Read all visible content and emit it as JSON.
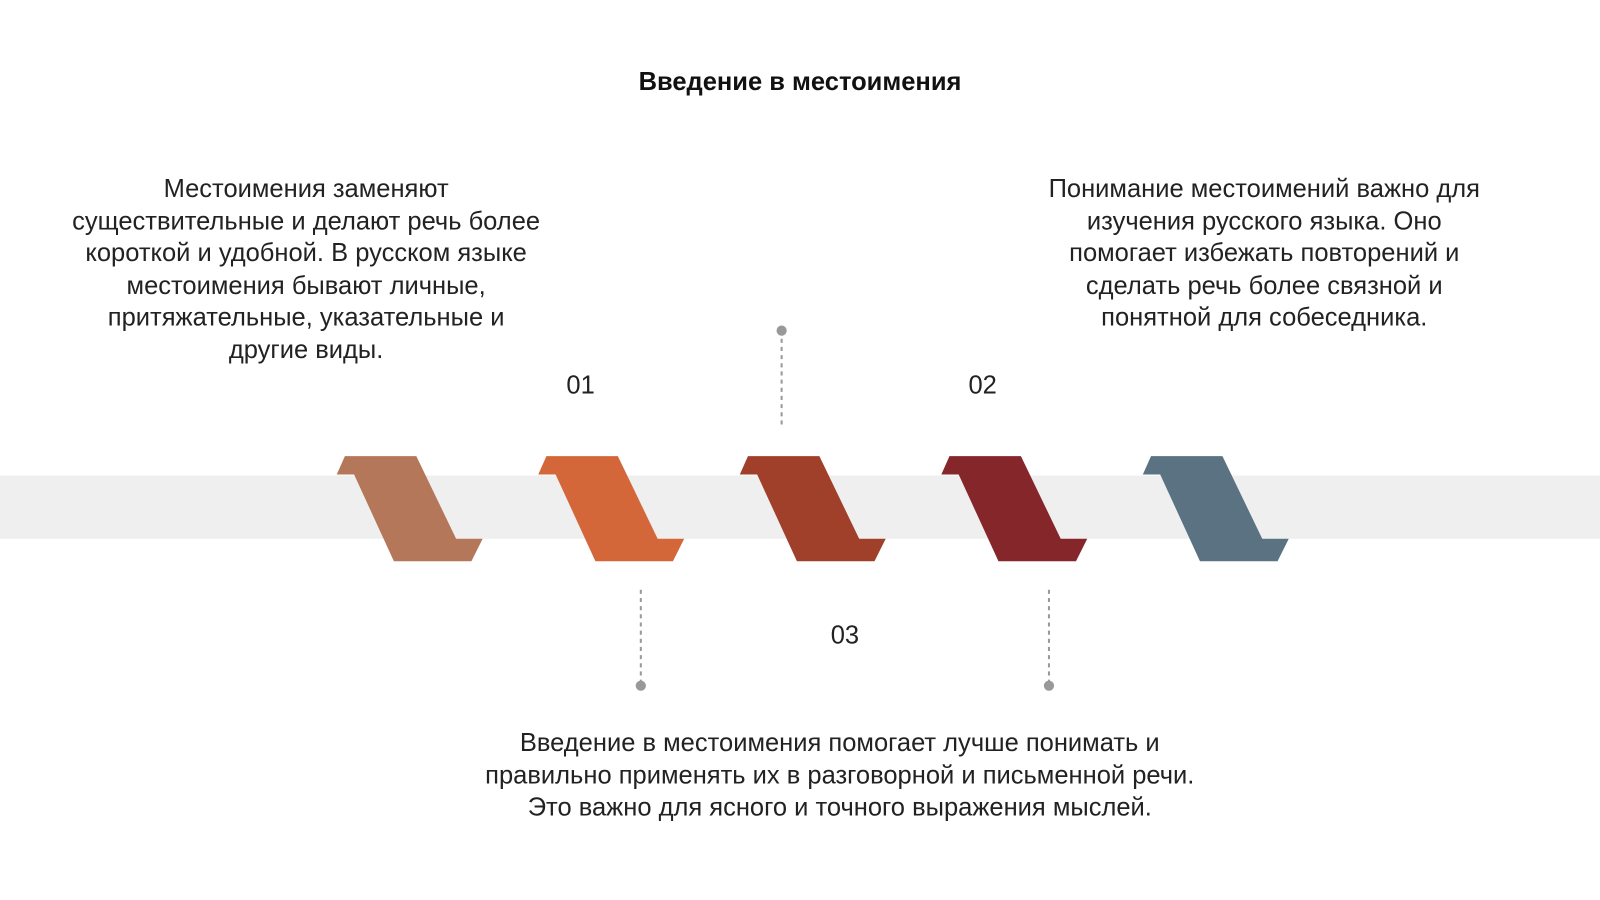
{
  "title": "Введение в местоимения",
  "steps": [
    {
      "number": "01",
      "text": "Местоимения заменяют существительные и делают речь более короткой и удобной. В русском языке местоимения бывают личные, притяжательные, указательные и другие виды."
    },
    {
      "number": "02",
      "text": "Понимание местоимений важно для изучения русского языка. Оно помогает избежать повторений и сделать речь более связной и понятной для собеседника."
    },
    {
      "number": "03",
      "text": "Введение в местоимения помогает лучше понимать и правильно применять их в разговорной и письменной речи. Это важно для ясного и точного выражения мыслей."
    }
  ]
}
